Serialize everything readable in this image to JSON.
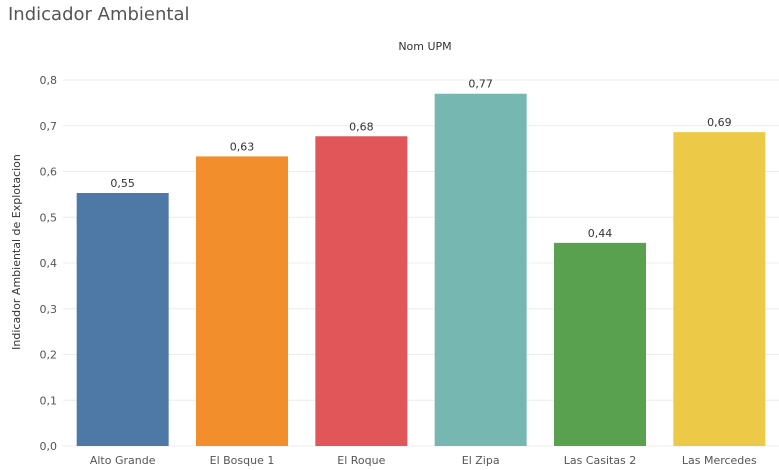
{
  "title": "Indicador Ambiental",
  "chart_data": {
    "type": "bar",
    "xlabel": "Nom UPM",
    "ylabel": "Indicador Ambiental de Explotacion",
    "categories": [
      "Alto Grande",
      "El Bosque 1",
      "El Roque",
      "El Zipa",
      "Las Casitas 2",
      "Las Mercedes"
    ],
    "values": [
      0.553,
      0.633,
      0.677,
      0.77,
      0.444,
      0.686
    ],
    "value_labels": [
      "0,55",
      "0,63",
      "0,68",
      "0,77",
      "0,44",
      "0,69"
    ],
    "colors": [
      "#4e79a7",
      "#f28e2b",
      "#e15759",
      "#76b7b2",
      "#59a14f",
      "#edc948"
    ],
    "ylim": [
      0,
      0.8
    ],
    "yticks": [
      0,
      0.1,
      0.2,
      0.3,
      0.4,
      0.5,
      0.6,
      0.7,
      0.8
    ],
    "ytick_labels": [
      "0,0",
      "0,1",
      "0,2",
      "0,3",
      "0,4",
      "0,5",
      "0,6",
      "0,7",
      "0,8"
    ],
    "grid": true,
    "legend": "none"
  }
}
